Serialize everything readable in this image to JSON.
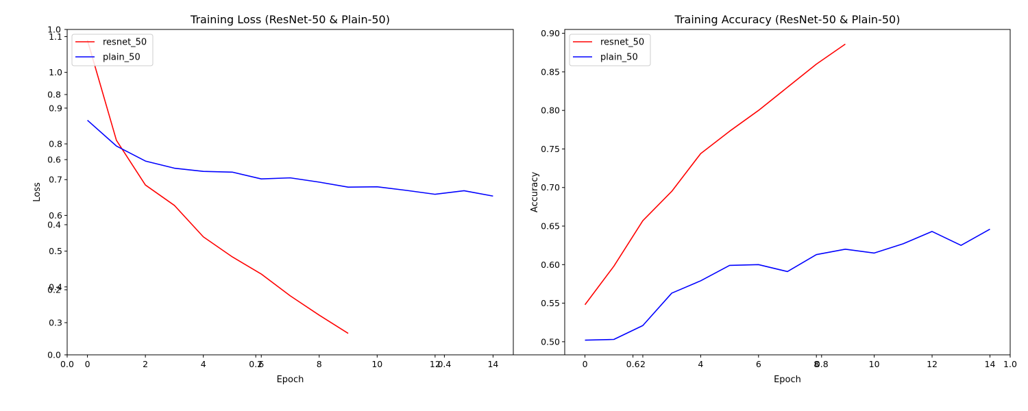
{
  "chart_data": [
    {
      "type": "line",
      "title": "Training Loss (ResNet-50 & Plain-50)",
      "xlabel": "Epoch",
      "ylabel": "Loss",
      "xlim": [
        -0.7,
        14.7
      ],
      "ylim": [
        0.21,
        1.12
      ],
      "xticks": [
        0,
        2,
        4,
        6,
        8,
        10,
        12,
        14
      ],
      "yticks": [
        0.3,
        0.4,
        0.5,
        0.6,
        0.7,
        0.8,
        0.9,
        1.0,
        1.1
      ],
      "grid": false,
      "legend": "upper left",
      "series": [
        {
          "name": "resnet_50",
          "color": "#ff0000",
          "x": [
            0,
            1,
            2,
            3,
            4,
            5,
            6,
            7,
            8,
            9
          ],
          "values": [
            1.09,
            0.81,
            0.685,
            0.628,
            0.54,
            0.484,
            0.436,
            0.375,
            0.321,
            0.27
          ]
        },
        {
          "name": "plain_50",
          "color": "#0000ff",
          "x": [
            0,
            1,
            2,
            3,
            4,
            5,
            6,
            7,
            8,
            9,
            10,
            11,
            12,
            13,
            14
          ],
          "values": [
            0.866,
            0.794,
            0.752,
            0.732,
            0.723,
            0.721,
            0.702,
            0.705,
            0.693,
            0.679,
            0.68,
            0.67,
            0.659,
            0.669,
            0.654
          ]
        }
      ]
    },
    {
      "type": "line",
      "title": "Training Accuracy (ResNet-50 & Plain-50)",
      "xlabel": "Epoch",
      "ylabel": "Accuracy",
      "xlim": [
        -0.7,
        14.7
      ],
      "ylim": [
        0.483,
        0.905
      ],
      "xticks": [
        0,
        2,
        4,
        6,
        8,
        10,
        12,
        14
      ],
      "yticks": [
        0.5,
        0.55,
        0.6,
        0.65,
        0.7,
        0.75,
        0.8,
        0.85,
        0.9
      ],
      "ytick_labels": [
        "0.50",
        "0.55",
        "0.60",
        "0.65",
        "0.70",
        "0.75",
        "0.80",
        "0.85",
        "0.90"
      ],
      "grid": false,
      "legend": "upper left",
      "series": [
        {
          "name": "resnet_50",
          "color": "#ff0000",
          "x": [
            0,
            1,
            2,
            3,
            4,
            5,
            6,
            7,
            8,
            9
          ],
          "values": [
            0.548,
            0.598,
            0.657,
            0.695,
            0.744,
            0.773,
            0.8,
            0.83,
            0.86,
            0.886
          ]
        },
        {
          "name": "plain_50",
          "color": "#0000ff",
          "x": [
            0,
            1,
            2,
            3,
            4,
            5,
            6,
            7,
            8,
            9,
            10,
            11,
            12,
            13,
            14
          ],
          "values": [
            0.502,
            0.503,
            0.521,
            0.563,
            0.579,
            0.599,
            0.6,
            0.591,
            0.613,
            0.62,
            0.615,
            0.627,
            0.643,
            0.625,
            0.646
          ]
        }
      ]
    }
  ],
  "overlay_axes": {
    "xticks": [
      0.0,
      0.2,
      0.4,
      0.6,
      0.8,
      1.0
    ],
    "yticks": [
      0.0,
      0.2,
      0.4,
      0.6,
      0.8,
      1.0
    ],
    "xtick_labels": [
      "0.0",
      "0.2",
      "0.4",
      "0.6",
      "0.8",
      "1.0"
    ],
    "ytick_labels": [
      "0.0",
      "0.2",
      "0.4",
      "0.6",
      "0.8",
      "1.0"
    ]
  }
}
